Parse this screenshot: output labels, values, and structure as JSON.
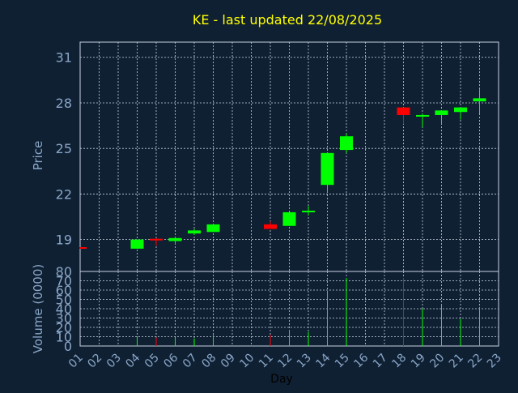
{
  "chart_data": {
    "type": "candlestick",
    "title": "KE - last updated 22/08/2025",
    "colors": {
      "background": "#0f2033",
      "up": "#00ff00",
      "down": "#ff0000",
      "grid": "#c8d2e0",
      "tick_text": "#8aa7c7",
      "title_text": "#ffff00"
    },
    "price_axis": {
      "label": "Price",
      "ticks": [
        "31",
        "28",
        "25",
        "22",
        "19"
      ],
      "ylim": [
        16.9,
        32.0
      ]
    },
    "volume_axis": {
      "label": "Volume (0000)",
      "ticks": [
        "80",
        "70",
        "60",
        "50",
        "40",
        "30",
        "20",
        "10",
        "0"
      ],
      "ylim": [
        0,
        80
      ]
    },
    "x_axis": {
      "label": "Day",
      "ticks": [
        "01",
        "02",
        "03",
        "04",
        "05",
        "06",
        "07",
        "08",
        "09",
        "10",
        "11",
        "12",
        "13",
        "14",
        "15",
        "16",
        "17",
        "18",
        "19",
        "20",
        "21",
        "22",
        "23"
      ],
      "xlim": [
        1,
        23
      ]
    },
    "candles": [
      {
        "day": 1,
        "open": 18.5,
        "close": 18.4,
        "high": 18.5,
        "low": 18.4,
        "volume": 0
      },
      {
        "day": 4,
        "open": 18.4,
        "close": 19.0,
        "high": 19.0,
        "low": 18.4,
        "volume": 9
      },
      {
        "day": 5,
        "open": 19.05,
        "close": 18.95,
        "high": 19.1,
        "low": 18.6,
        "volume": 9
      },
      {
        "day": 6,
        "open": 18.9,
        "close": 19.1,
        "high": 19.2,
        "low": 18.7,
        "volume": 9
      },
      {
        "day": 7,
        "open": 19.4,
        "close": 19.6,
        "high": 19.7,
        "low": 19.3,
        "volume": 8
      },
      {
        "day": 8,
        "open": 19.5,
        "close": 20.0,
        "high": 20.0,
        "low": 19.5,
        "volume": 12
      },
      {
        "day": 11,
        "open": 20.0,
        "close": 19.7,
        "high": 20.2,
        "low": 19.7,
        "volume": 12
      },
      {
        "day": 12,
        "open": 19.9,
        "close": 20.8,
        "high": 20.8,
        "low": 19.9,
        "volume": 17
      },
      {
        "day": 13,
        "open": 20.8,
        "close": 20.9,
        "high": 21.2,
        "low": 20.6,
        "volume": 15
      },
      {
        "day": 14,
        "open": 22.6,
        "close": 24.7,
        "high": 24.7,
        "low": 22.1,
        "volume": 59
      },
      {
        "day": 15,
        "open": 24.9,
        "close": 25.8,
        "high": 26.0,
        "low": 24.7,
        "volume": 73
      },
      {
        "day": 18,
        "open": 27.7,
        "close": 27.2,
        "high": 27.7,
        "low": 26.6,
        "volume": 73
      },
      {
        "day": 19,
        "open": 27.1,
        "close": 27.2,
        "high": 27.3,
        "low": 26.4,
        "volume": 40
      },
      {
        "day": 20,
        "open": 27.2,
        "close": 27.5,
        "high": 27.5,
        "low": 26.6,
        "volume": 45
      },
      {
        "day": 21,
        "open": 27.4,
        "close": 27.7,
        "high": 27.7,
        "low": 26.9,
        "volume": 29
      },
      {
        "day": 22,
        "open": 28.1,
        "close": 28.3,
        "high": 28.9,
        "low": 27.3,
        "volume": 42
      }
    ]
  }
}
